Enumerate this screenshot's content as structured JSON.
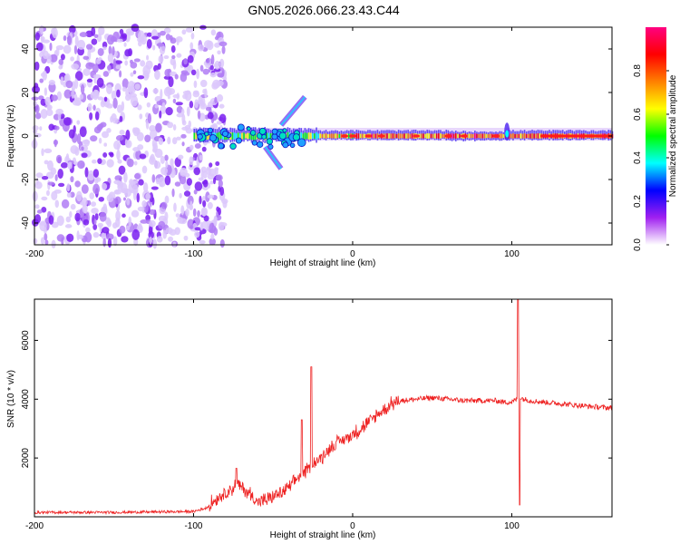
{
  "chart_data": [
    {
      "type": "heatmap",
      "title": "GN05.2026.066.23.43.C44",
      "xlabel": "Height of straight line (km)",
      "ylabel": "Frequency (Hz)",
      "xlim": [
        -200,
        163
      ],
      "ylim": [
        -50,
        50
      ],
      "xticks": [
        -200,
        -100,
        0,
        100
      ],
      "yticks": [
        40,
        20,
        0,
        -20,
        -40
      ],
      "colorbar": {
        "label": "Normalized spectral amplitude",
        "range": [
          0,
          1
        ],
        "ticks": [
          "0.0",
          "0.2",
          "0.4",
          "0.6",
          "0.8"
        ],
        "colormap": [
          "#ffffff",
          "#a020f0",
          "#0000ff",
          "#00ffff",
          "#00ff00",
          "#ffff00",
          "#ff8000",
          "#ff0000",
          "#ff0080"
        ]
      },
      "features": [
        {
          "name": "noise",
          "x_range": [
            -200,
            -85
          ],
          "freq_range": [
            -50,
            50
          ],
          "level": 0.15
        },
        {
          "name": "narrowband-signal",
          "x_range": [
            -100,
            163
          ],
          "freq_center": 0,
          "level": 0.9
        },
        {
          "name": "chirp-upper",
          "x_range": [
            -45,
            -30
          ],
          "freq_range": [
            5,
            18
          ]
        },
        {
          "name": "chirp-lower",
          "x_range": [
            -55,
            -45
          ],
          "freq_range": [
            -15,
            -5
          ]
        },
        {
          "name": "spike",
          "x": 97,
          "freq_range": [
            -5,
            10
          ]
        }
      ]
    },
    {
      "type": "line",
      "xlabel": "Height of straight line (km)",
      "ylabel": "SNR (10 * v/v)",
      "xlim": [
        -200,
        163
      ],
      "ylim": [
        0,
        7400
      ],
      "xticks": [
        -200,
        -100,
        0,
        100
      ],
      "yticks": [
        2000,
        4000,
        6000
      ],
      "series": [
        {
          "name": "SNR",
          "color": "#ee2222",
          "x": [
            -200,
            -150,
            -100,
            -92,
            -85,
            -78,
            -72,
            -65,
            -60,
            -55,
            -50,
            -45,
            -40,
            -35,
            -30,
            -25,
            -20,
            -15,
            -10,
            -5,
            0,
            5,
            10,
            15,
            20,
            25,
            30,
            40,
            50,
            60,
            70,
            80,
            90,
            95,
            100,
            103,
            105,
            108,
            112,
            120,
            130,
            140,
            150,
            163
          ],
          "values": [
            150,
            150,
            180,
            300,
            650,
            900,
            1100,
            800,
            500,
            550,
            700,
            800,
            1000,
            1300,
            1500,
            1800,
            2000,
            2300,
            2500,
            2650,
            2800,
            3000,
            3200,
            3450,
            3650,
            3850,
            3950,
            4000,
            4050,
            4000,
            3950,
            3950,
            3950,
            3900,
            3900,
            4000,
            4050,
            4000,
            3950,
            3900,
            3850,
            3800,
            3750,
            3700
          ],
          "noise_amplitude": 400,
          "spikes": [
            {
              "x": -73,
              "value": 1650
            },
            {
              "x": -32,
              "value": 3300
            },
            {
              "x": -26,
              "value": 5100
            },
            {
              "x": 104,
              "value": 7400
            },
            {
              "x": 105,
              "value": 400
            }
          ]
        }
      ]
    }
  ]
}
